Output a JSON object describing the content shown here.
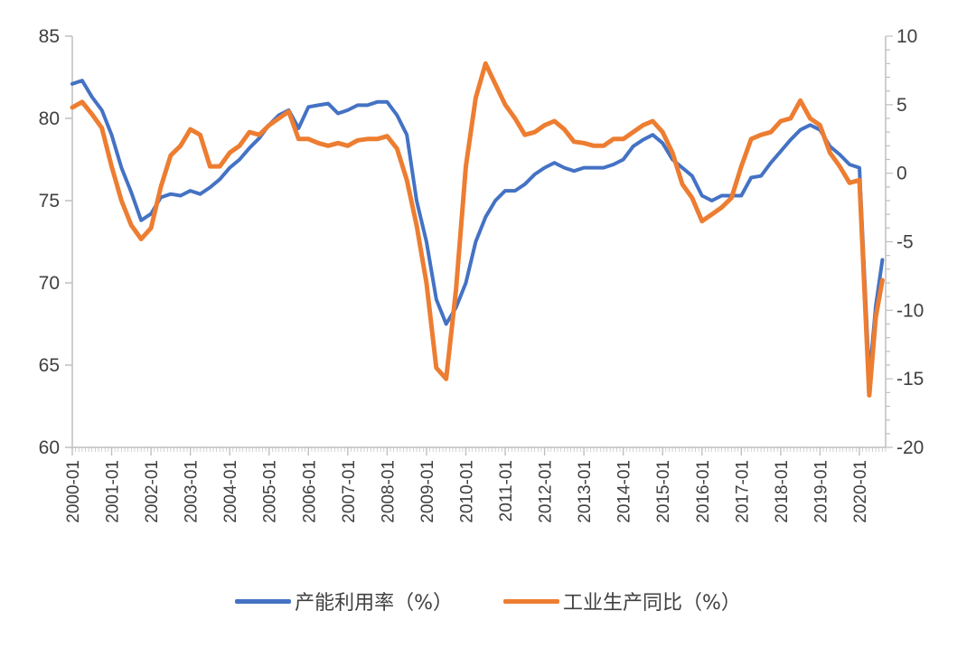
{
  "chart_data": {
    "type": "line",
    "x_start": "2000-01",
    "x_end": "2020-09",
    "xtick_labels": [
      "2000-01",
      "2001-01",
      "2002-01",
      "2003-01",
      "2004-01",
      "2005-01",
      "2006-01",
      "2007-01",
      "2008-01",
      "2009-01",
      "2010-01",
      "2011-01",
      "2012-01",
      "2013-01",
      "2014-01",
      "2015-01",
      "2016-01",
      "2017-01",
      "2018-01",
      "2019-01",
      "2020-01"
    ],
    "y_left": {
      "lim": [
        60,
        85
      ],
      "ticks": [
        "60",
        "65",
        "70",
        "75",
        "80",
        "85"
      ]
    },
    "y_right": {
      "lim": [
        -20,
        10
      ],
      "ticks": [
        "-20",
        "-15",
        "-10",
        "-5",
        "0",
        "5",
        "10"
      ]
    },
    "grid": false,
    "legend_position": "bottom",
    "series": [
      {
        "name": "产能利用率（%）",
        "axis": "left",
        "color": "#4472C4",
        "points": [
          [
            "2000-01",
            82.1
          ],
          [
            "2000-04",
            82.3
          ],
          [
            "2000-07",
            81.3
          ],
          [
            "2000-10",
            80.5
          ],
          [
            "2001-01",
            79.0
          ],
          [
            "2001-04",
            77.0
          ],
          [
            "2001-07",
            75.5
          ],
          [
            "2001-10",
            73.8
          ],
          [
            "2002-01",
            74.2
          ],
          [
            "2002-04",
            75.2
          ],
          [
            "2002-07",
            75.4
          ],
          [
            "2002-10",
            75.3
          ],
          [
            "2003-01",
            75.6
          ],
          [
            "2003-04",
            75.4
          ],
          [
            "2003-07",
            75.8
          ],
          [
            "2003-10",
            76.3
          ],
          [
            "2004-01",
            77.0
          ],
          [
            "2004-04",
            77.5
          ],
          [
            "2004-07",
            78.2
          ],
          [
            "2004-10",
            78.8
          ],
          [
            "2005-01",
            79.6
          ],
          [
            "2005-04",
            80.2
          ],
          [
            "2005-07",
            80.5
          ],
          [
            "2005-10",
            79.4
          ],
          [
            "2006-01",
            80.7
          ],
          [
            "2006-04",
            80.8
          ],
          [
            "2006-07",
            80.9
          ],
          [
            "2006-10",
            80.3
          ],
          [
            "2007-01",
            80.5
          ],
          [
            "2007-04",
            80.8
          ],
          [
            "2007-07",
            80.8
          ],
          [
            "2007-10",
            81.0
          ],
          [
            "2008-01",
            81.0
          ],
          [
            "2008-04",
            80.2
          ],
          [
            "2008-07",
            79.0
          ],
          [
            "2008-10",
            75.0
          ],
          [
            "2009-01",
            72.5
          ],
          [
            "2009-04",
            69.0
          ],
          [
            "2009-07",
            67.5
          ],
          [
            "2009-10",
            68.5
          ],
          [
            "2010-01",
            70.0
          ],
          [
            "2010-04",
            72.5
          ],
          [
            "2010-07",
            74.0
          ],
          [
            "2010-10",
            75.0
          ],
          [
            "2011-01",
            75.6
          ],
          [
            "2011-04",
            75.6
          ],
          [
            "2011-07",
            76.0
          ],
          [
            "2011-10",
            76.6
          ],
          [
            "2012-01",
            77.0
          ],
          [
            "2012-04",
            77.3
          ],
          [
            "2012-07",
            77.0
          ],
          [
            "2012-10",
            76.8
          ],
          [
            "2013-01",
            77.0
          ],
          [
            "2013-04",
            77.0
          ],
          [
            "2013-07",
            77.0
          ],
          [
            "2013-10",
            77.2
          ],
          [
            "2014-01",
            77.5
          ],
          [
            "2014-04",
            78.3
          ],
          [
            "2014-07",
            78.7
          ],
          [
            "2014-10",
            79.0
          ],
          [
            "2015-01",
            78.5
          ],
          [
            "2015-04",
            77.5
          ],
          [
            "2015-07",
            77.0
          ],
          [
            "2015-10",
            76.5
          ],
          [
            "2016-01",
            75.3
          ],
          [
            "2016-04",
            75.0
          ],
          [
            "2016-07",
            75.3
          ],
          [
            "2016-10",
            75.3
          ],
          [
            "2017-01",
            75.3
          ],
          [
            "2017-04",
            76.4
          ],
          [
            "2017-07",
            76.5
          ],
          [
            "2017-10",
            77.3
          ],
          [
            "2018-01",
            78.0
          ],
          [
            "2018-04",
            78.7
          ],
          [
            "2018-07",
            79.3
          ],
          [
            "2018-10",
            79.6
          ],
          [
            "2019-01",
            79.3
          ],
          [
            "2019-04",
            78.3
          ],
          [
            "2019-07",
            77.8
          ],
          [
            "2019-10",
            77.2
          ],
          [
            "2020-01",
            77.0
          ],
          [
            "2020-04",
            64.2
          ],
          [
            "2020-06",
            68.6
          ],
          [
            "2020-08",
            71.4
          ]
        ]
      },
      {
        "name": "工业生产同比（%）",
        "axis": "right",
        "color": "#ED7D31",
        "points": [
          [
            "2000-01",
            4.8
          ],
          [
            "2000-04",
            5.2
          ],
          [
            "2000-07",
            4.3
          ],
          [
            "2000-10",
            3.3
          ],
          [
            "2001-01",
            0.5
          ],
          [
            "2001-04",
            -2.0
          ],
          [
            "2001-07",
            -3.8
          ],
          [
            "2001-10",
            -4.8
          ],
          [
            "2002-01",
            -4.0
          ],
          [
            "2002-04",
            -1.0
          ],
          [
            "2002-07",
            1.3
          ],
          [
            "2002-10",
            2.0
          ],
          [
            "2003-01",
            3.2
          ],
          [
            "2003-04",
            2.8
          ],
          [
            "2003-07",
            0.5
          ],
          [
            "2003-10",
            0.5
          ],
          [
            "2004-01",
            1.5
          ],
          [
            "2004-04",
            2.0
          ],
          [
            "2004-07",
            3.0
          ],
          [
            "2004-10",
            2.8
          ],
          [
            "2005-01",
            3.5
          ],
          [
            "2005-04",
            4.0
          ],
          [
            "2005-07",
            4.5
          ],
          [
            "2005-10",
            2.5
          ],
          [
            "2006-01",
            2.5
          ],
          [
            "2006-04",
            2.2
          ],
          [
            "2006-07",
            2.0
          ],
          [
            "2006-10",
            2.2
          ],
          [
            "2007-01",
            2.0
          ],
          [
            "2007-04",
            2.4
          ],
          [
            "2007-07",
            2.5
          ],
          [
            "2007-10",
            2.5
          ],
          [
            "2008-01",
            2.7
          ],
          [
            "2008-04",
            1.8
          ],
          [
            "2008-07",
            -0.5
          ],
          [
            "2008-10",
            -3.8
          ],
          [
            "2009-01",
            -8.0
          ],
          [
            "2009-04",
            -14.2
          ],
          [
            "2009-07",
            -15.0
          ],
          [
            "2009-10",
            -8.5
          ],
          [
            "2010-01",
            0.5
          ],
          [
            "2010-04",
            5.5
          ],
          [
            "2010-07",
            8.0
          ],
          [
            "2010-10",
            6.5
          ],
          [
            "2011-01",
            5.0
          ],
          [
            "2011-04",
            4.0
          ],
          [
            "2011-07",
            2.8
          ],
          [
            "2011-10",
            3.0
          ],
          [
            "2012-01",
            3.5
          ],
          [
            "2012-04",
            3.8
          ],
          [
            "2012-07",
            3.2
          ],
          [
            "2012-10",
            2.3
          ],
          [
            "2013-01",
            2.2
          ],
          [
            "2013-04",
            2.0
          ],
          [
            "2013-07",
            2.0
          ],
          [
            "2013-10",
            2.5
          ],
          [
            "2014-01",
            2.5
          ],
          [
            "2014-04",
            3.0
          ],
          [
            "2014-07",
            3.5
          ],
          [
            "2014-10",
            3.8
          ],
          [
            "2015-01",
            3.0
          ],
          [
            "2015-04",
            1.5
          ],
          [
            "2015-07",
            -0.8
          ],
          [
            "2015-10",
            -1.8
          ],
          [
            "2016-01",
            -3.5
          ],
          [
            "2016-04",
            -3.0
          ],
          [
            "2016-07",
            -2.5
          ],
          [
            "2016-10",
            -1.8
          ],
          [
            "2017-01",
            0.5
          ],
          [
            "2017-04",
            2.5
          ],
          [
            "2017-07",
            2.8
          ],
          [
            "2017-10",
            3.0
          ],
          [
            "2018-01",
            3.8
          ],
          [
            "2018-04",
            4.0
          ],
          [
            "2018-07",
            5.3
          ],
          [
            "2018-10",
            4.0
          ],
          [
            "2019-01",
            3.5
          ],
          [
            "2019-04",
            1.5
          ],
          [
            "2019-07",
            0.5
          ],
          [
            "2019-10",
            -0.7
          ],
          [
            "2020-01",
            -0.5
          ],
          [
            "2020-04",
            -16.2
          ],
          [
            "2020-06",
            -10.5
          ],
          [
            "2020-08",
            -7.8
          ]
        ]
      }
    ]
  }
}
